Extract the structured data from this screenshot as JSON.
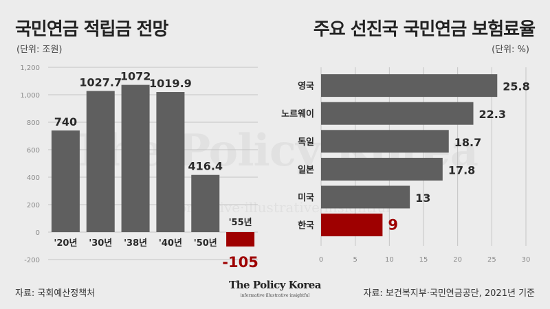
{
  "left": {
    "title": "국민연금 적립금 전망",
    "unit": "(단위: 조원)"
  },
  "right": {
    "title": "주요 선진국 국민연금 보험료율",
    "unit": "(단위: %)"
  },
  "footer": {
    "source_left": "자료: 국회예산정책처",
    "source_right": "자료: 보건복지부·국민연금공단, 2021년 기준",
    "logo": "The Policy Korea",
    "logo_tagline": "informative·illustrative·insightful"
  },
  "watermark": {
    "text": "The Policy Korea",
    "tagline": "informative·illustrative·insightful"
  },
  "colors": {
    "bar": "#5f5f5f",
    "highlight": "#9e0000",
    "grid": "#c4c4c4",
    "tick": "#8a8a8a",
    "label": "#2a2a2a"
  },
  "chart_data": [
    {
      "type": "bar",
      "categories": [
        "'20년",
        "'30년",
        "'38년",
        "'40년",
        "'50년",
        "'55년"
      ],
      "values": [
        740,
        1027.7,
        1072,
        1019.9,
        416.4,
        -105
      ],
      "value_labels": [
        "740",
        "1027.7",
        "1072",
        "1019.9",
        "416.4",
        "-105"
      ],
      "highlight": [
        false,
        false,
        false,
        false,
        false,
        true
      ],
      "title": "국민연금 적립금 전망",
      "unit": "(단위: 조원)",
      "ylim": [
        -200,
        1200
      ],
      "yticks": [
        -200,
        0,
        200,
        400,
        600,
        800,
        1000,
        1200
      ],
      "ytick_labels": [
        "-200",
        "0",
        "200",
        "400",
        "600",
        "800",
        "1,000",
        "1,200"
      ],
      "grid": true
    },
    {
      "type": "bar",
      "orientation": "horizontal",
      "categories": [
        "영국",
        "노르웨이",
        "독일",
        "일본",
        "미국",
        "한국"
      ],
      "values": [
        25.8,
        22.3,
        18.7,
        17.8,
        13,
        9
      ],
      "value_labels": [
        "25.8",
        "22.3",
        "18.7",
        "17.8",
        "13",
        "9"
      ],
      "highlight": [
        false,
        false,
        false,
        false,
        false,
        true
      ],
      "title": "주요 선진국 국민연금 보험료율",
      "unit": "(단위: %)",
      "xlim": [
        0,
        30
      ],
      "xticks": [
        0,
        5,
        10,
        15,
        20,
        25,
        30
      ],
      "xtick_labels": [
        "0",
        "5",
        "10",
        "15",
        "20",
        "25",
        "30"
      ],
      "grid": true
    }
  ]
}
